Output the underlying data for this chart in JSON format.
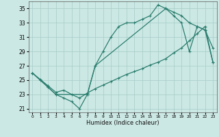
{
  "xlabel": "Humidex (Indice chaleur)",
  "bg_color": "#cce8e4",
  "line_color": "#2a7d6e",
  "grid_color": "#aacfcb",
  "xlim": [
    -0.5,
    23.5
  ],
  "ylim": [
    20.5,
    36.0
  ],
  "xticks": [
    0,
    1,
    2,
    3,
    4,
    5,
    6,
    7,
    8,
    9,
    10,
    11,
    12,
    13,
    14,
    15,
    16,
    17,
    18,
    19,
    20,
    21,
    22,
    23
  ],
  "yticks": [
    21,
    23,
    25,
    27,
    29,
    31,
    33,
    35
  ],
  "line1_x": [
    0,
    1,
    2,
    3,
    4,
    5,
    6,
    7,
    8,
    9,
    10,
    11,
    12,
    13,
    14,
    15,
    16,
    17,
    18,
    19,
    20,
    21,
    22,
    23
  ],
  "line1_y": [
    26,
    25,
    24,
    23,
    22.5,
    22,
    21,
    23,
    27,
    29,
    31,
    32.5,
    33,
    33,
    33.5,
    34,
    35.5,
    35,
    34,
    33,
    29,
    32.5,
    32,
    29.5
  ],
  "line2_x": [
    0,
    2,
    3,
    7,
    8,
    17,
    18,
    19,
    20,
    21,
    22,
    23
  ],
  "line2_y": [
    26,
    24,
    23,
    23,
    27,
    35,
    34.5,
    34,
    33,
    32.5,
    32,
    27.5
  ],
  "line3_x": [
    0,
    1,
    2,
    3,
    4,
    5,
    6,
    7,
    8,
    9,
    10,
    11,
    12,
    13,
    14,
    15,
    16,
    17,
    18,
    19,
    20,
    21,
    22,
    23
  ],
  "line3_y": [
    26,
    25.1,
    24.2,
    23.3,
    23.6,
    23.0,
    22.5,
    23.2,
    23.8,
    24.3,
    24.8,
    25.3,
    25.8,
    26.2,
    26.6,
    27.1,
    27.5,
    28.0,
    28.8,
    29.5,
    30.5,
    31.5,
    32.5,
    27.5
  ]
}
